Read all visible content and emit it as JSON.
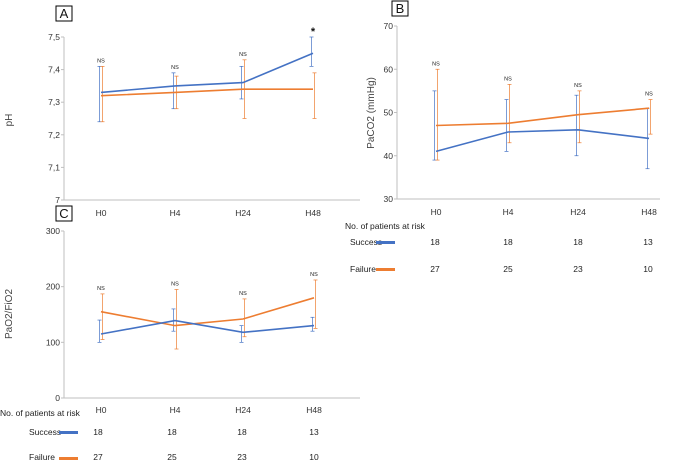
{
  "colors": {
    "success": "#4472C4",
    "failure": "#ED7D31",
    "axis": "#BFBFBF"
  },
  "risk_table": {
    "header": "No. of patients at risk",
    "rows": [
      {
        "label": "Success",
        "counts": [
          "18",
          "18",
          "18",
          "13"
        ]
      },
      {
        "label": "Failure",
        "counts": [
          "27",
          "25",
          "23",
          "10"
        ]
      }
    ]
  },
  "chart_data": [
    {
      "panel": "A",
      "type": "line",
      "ylabel": "pH",
      "xlabel": "",
      "ylim": [
        7.0,
        7.5
      ],
      "y_ticks": [
        "7",
        "7,1",
        "7,2",
        "7,3",
        "7,4",
        "7,5"
      ],
      "categories": [
        "H0",
        "H4",
        "H24",
        "H48"
      ],
      "series": [
        {
          "name": "Success",
          "values": [
            7.33,
            7.35,
            7.36,
            7.45
          ],
          "err_low": [
            7.24,
            7.28,
            7.31,
            7.41
          ],
          "err_high": [
            7.41,
            7.39,
            7.41,
            7.5
          ]
        },
        {
          "name": "Failure",
          "values": [
            7.32,
            7.33,
            7.34,
            7.34
          ],
          "err_low": [
            7.24,
            7.28,
            7.25,
            7.25
          ],
          "err_high": [
            7.41,
            7.38,
            7.43,
            7.39
          ]
        }
      ],
      "annotations": [
        "NS",
        "NS",
        "NS",
        "*"
      ]
    },
    {
      "panel": "B",
      "type": "line",
      "ylabel": "PaCO2 (mmHg)",
      "xlabel": "",
      "ylim": [
        30,
        70
      ],
      "y_ticks": [
        "30",
        "40",
        "50",
        "60",
        "70"
      ],
      "categories": [
        "H0",
        "H4",
        "H24",
        "H48"
      ],
      "series": [
        {
          "name": "Success",
          "values": [
            41,
            45.5,
            46,
            44
          ],
          "err_low": [
            39,
            41,
            40,
            37
          ],
          "err_high": [
            55,
            53,
            54,
            51
          ]
        },
        {
          "name": "Failure",
          "values": [
            47,
            47.5,
            49.5,
            51
          ],
          "err_low": [
            39,
            43,
            43,
            45
          ],
          "err_high": [
            60,
            56.5,
            55,
            53
          ]
        }
      ],
      "annotations": [
        "NS",
        "NS",
        "NS",
        "NS"
      ]
    },
    {
      "panel": "C",
      "type": "line",
      "ylabel": "PaO2/FiO2",
      "xlabel": "",
      "ylim": [
        0,
        300
      ],
      "y_ticks": [
        "0",
        "100",
        "200",
        "300"
      ],
      "categories": [
        "H0",
        "H4",
        "H24",
        "H48"
      ],
      "series": [
        {
          "name": "Success",
          "values": [
            115,
            139,
            118,
            130
          ],
          "err_low": [
            100,
            120,
            100,
            120
          ],
          "err_high": [
            140,
            160,
            130,
            145
          ]
        },
        {
          "name": "Failure",
          "values": [
            155,
            130,
            142,
            180
          ],
          "err_low": [
            105,
            88,
            110,
            125
          ],
          "err_high": [
            187,
            195,
            178,
            212
          ]
        }
      ],
      "annotations": [
        "NS",
        "NS",
        "NS",
        "NS"
      ]
    }
  ]
}
